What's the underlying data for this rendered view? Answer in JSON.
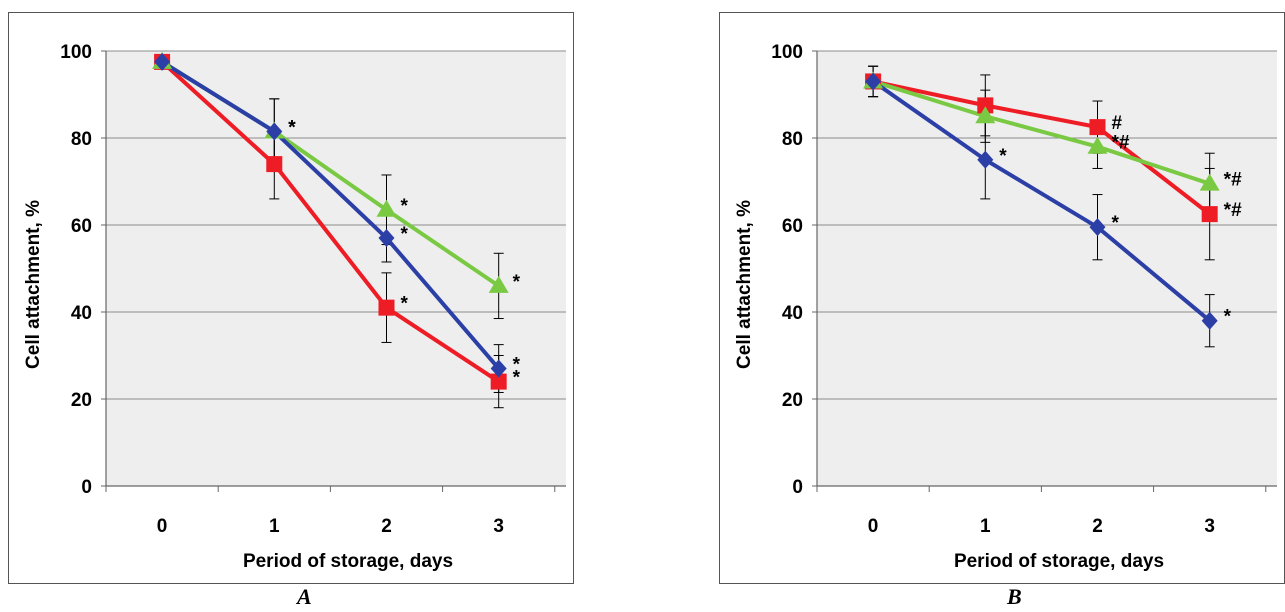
{
  "colors": {
    "red": "#ee1c25",
    "green": "#7ac943",
    "blue": "#2b3fa6",
    "plot_background": "#eeeeee",
    "gridline": "#8c8c8c"
  },
  "chart_data": [
    {
      "panel": "A",
      "type": "line",
      "xlabel": "Period of storage, days",
      "ylabel": "Cell attachment, %",
      "categories": [
        "0",
        "1",
        "2",
        "3"
      ],
      "ylim": [
        0,
        100
      ],
      "yticks": [
        "0",
        "20",
        "40",
        "60",
        "80",
        "100"
      ],
      "grid": true,
      "series": [
        {
          "color": "red",
          "marker": "square",
          "values": [
            97.5,
            74,
            41,
            24
          ],
          "errors": [
            1.5,
            8,
            8,
            6
          ],
          "annotations": [
            "",
            "",
            "*",
            "*"
          ]
        },
        {
          "color": "green",
          "marker": "triangle",
          "values": [
            97.5,
            81.5,
            63.5,
            46
          ],
          "errors": [
            1.5,
            7.5,
            8,
            7.5
          ],
          "annotations": [
            "",
            "*",
            "*",
            "*"
          ]
        },
        {
          "color": "blue",
          "marker": "diamond",
          "values": [
            97.5,
            81.5,
            57,
            27
          ],
          "errors": [
            1.5,
            7.5,
            5.5,
            5.5
          ],
          "annotations": [
            "",
            "*",
            "*",
            "*"
          ]
        }
      ]
    },
    {
      "panel": "B",
      "type": "line",
      "xlabel": "Period of storage, days",
      "ylabel": "Cell attachment, %",
      "categories": [
        "0",
        "1",
        "2",
        "3"
      ],
      "ylim": [
        0,
        100
      ],
      "yticks": [
        "0",
        "20",
        "40",
        "60",
        "80",
        "100"
      ],
      "grid": true,
      "series": [
        {
          "color": "red",
          "marker": "square",
          "values": [
            93,
            87.5,
            82.5,
            62.5
          ],
          "errors": [
            3.5,
            7,
            6,
            10.5
          ],
          "annotations": [
            "",
            "",
            "#",
            "*#"
          ]
        },
        {
          "color": "green",
          "marker": "triangle",
          "values": [
            93,
            85,
            78,
            69.5
          ],
          "errors": [
            3.5,
            6,
            5,
            7
          ],
          "annotations": [
            "",
            "",
            "*#",
            "*#"
          ]
        },
        {
          "color": "blue",
          "marker": "diamond",
          "values": [
            93,
            75,
            59.5,
            38
          ],
          "errors": [
            3.5,
            9,
            7.5,
            6
          ],
          "annotations": [
            "",
            "*",
            "*",
            "*"
          ]
        }
      ]
    }
  ],
  "captions": {
    "a": "A",
    "b": "B"
  }
}
